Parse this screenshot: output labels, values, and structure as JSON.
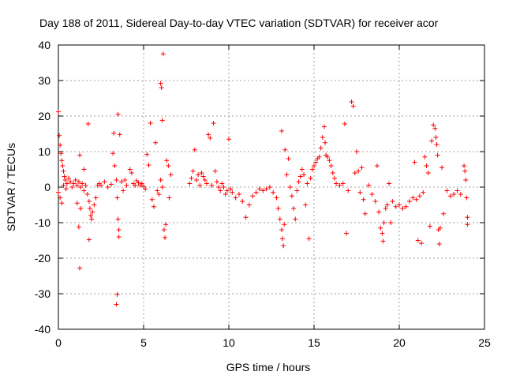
{
  "chart_data": {
    "type": "scatter",
    "title": "Day 188 of 2011, Sidereal Day-to-day VTEC variation (SDTVAR) for receiver acor",
    "xlabel": "GPS time / hours",
    "ylabel": "SDTVAR / TECUs",
    "xlim": [
      0,
      25
    ],
    "ylim": [
      -40,
      40
    ],
    "x_ticks": [
      0,
      5,
      10,
      15,
      20,
      25
    ],
    "y_ticks": [
      -40,
      -30,
      -20,
      -10,
      0,
      10,
      20,
      30,
      40
    ],
    "x_tick_labels": [
      "0",
      "5",
      "10",
      "15",
      "20",
      "25"
    ],
    "y_tick_labels": [
      "-40",
      "-30",
      "-20",
      "-10",
      "0",
      "10",
      "20",
      "30",
      "40"
    ],
    "grid": true,
    "marker": "+",
    "color": "#ff0000",
    "series": [
      {
        "name": "SDTVAR",
        "points": [
          [
            0.0,
            21.2
          ],
          [
            0.05,
            14.5
          ],
          [
            0.1,
            11.8
          ],
          [
            0.15,
            9.5
          ],
          [
            0.2,
            7.5
          ],
          [
            0.25,
            6.0
          ],
          [
            0.3,
            4.5
          ],
          [
            0.35,
            3.0
          ],
          [
            0.4,
            2.0
          ],
          [
            0.0,
            -1.5
          ],
          [
            0.1,
            -3.0
          ],
          [
            0.2,
            -4.5
          ],
          [
            0.3,
            0.5
          ],
          [
            0.45,
            -0.5
          ],
          [
            0.5,
            1.0
          ],
          [
            0.6,
            2.5
          ],
          [
            0.7,
            1.5
          ],
          [
            0.8,
            0.0
          ],
          [
            0.9,
            1.0
          ],
          [
            1.0,
            2.0
          ],
          [
            1.1,
            0.5
          ],
          [
            1.2,
            1.5
          ],
          [
            1.3,
            0.0
          ],
          [
            1.4,
            1.0
          ],
          [
            1.5,
            -1.0
          ],
          [
            1.6,
            0.5
          ],
          [
            1.7,
            -2.0
          ],
          [
            1.8,
            -4.0
          ],
          [
            1.85,
            -6.0
          ],
          [
            1.9,
            -8.0
          ],
          [
            1.95,
            -9.0
          ],
          [
            2.0,
            -7.0
          ],
          [
            2.1,
            -5.0
          ],
          [
            2.2,
            -3.0
          ],
          [
            2.3,
            0.5
          ],
          [
            2.4,
            1.0
          ],
          [
            1.25,
            -22.8
          ],
          [
            1.2,
            -11.2
          ],
          [
            1.25,
            9.0
          ],
          [
            1.75,
            17.8
          ],
          [
            1.8,
            -14.8
          ],
          [
            1.3,
            -6.0
          ],
          [
            1.1,
            -4.5
          ],
          [
            1.5,
            5.0
          ],
          [
            2.5,
            0.5
          ],
          [
            2.7,
            1.5
          ],
          [
            2.9,
            0.0
          ],
          [
            3.1,
            0.8
          ],
          [
            3.2,
            9.5
          ],
          [
            3.25,
            15.2
          ],
          [
            3.3,
            6.0
          ],
          [
            3.4,
            2.0
          ],
          [
            3.45,
            -3.0
          ],
          [
            3.5,
            -9.0
          ],
          [
            3.55,
            -12.0
          ],
          [
            3.5,
            20.5
          ],
          [
            3.45,
            -30.2
          ],
          [
            3.4,
            -33.0
          ],
          [
            3.6,
            14.8
          ],
          [
            3.55,
            -14.0
          ],
          [
            3.7,
            1.5
          ],
          [
            3.8,
            -1.0
          ],
          [
            3.9,
            2.0
          ],
          [
            4.0,
            0.5
          ],
          [
            4.2,
            5.0
          ],
          [
            4.3,
            4.0
          ],
          [
            4.4,
            1.0
          ],
          [
            4.5,
            0.5
          ],
          [
            4.6,
            1.8
          ],
          [
            4.7,
            1.2
          ],
          [
            4.8,
            0.5
          ],
          [
            4.9,
            1.0
          ],
          [
            5.0,
            0.2
          ],
          [
            5.1,
            -0.5
          ],
          [
            5.2,
            9.2
          ],
          [
            5.3,
            6.2
          ],
          [
            5.4,
            18.0
          ],
          [
            5.5,
            -3.5
          ],
          [
            5.6,
            -5.5
          ],
          [
            5.7,
            12.5
          ],
          [
            5.8,
            -1.0
          ],
          [
            5.9,
            -2.0
          ],
          [
            6.0,
            29.2
          ],
          [
            6.05,
            28.0
          ],
          [
            6.1,
            18.8
          ],
          [
            6.15,
            37.5
          ],
          [
            6.2,
            -12.0
          ],
          [
            6.25,
            -14.2
          ],
          [
            6.3,
            -10.5
          ],
          [
            6.35,
            7.5
          ],
          [
            6.45,
            6.0
          ],
          [
            6.5,
            -3.0
          ],
          [
            6.6,
            3.5
          ],
          [
            6.0,
            2.0
          ],
          [
            6.1,
            0.0
          ],
          [
            7.7,
            1.0
          ],
          [
            7.8,
            2.5
          ],
          [
            7.9,
            4.5
          ],
          [
            8.0,
            10.5
          ],
          [
            8.1,
            2.0
          ],
          [
            8.2,
            3.5
          ],
          [
            8.3,
            0.5
          ],
          [
            8.4,
            4.0
          ],
          [
            8.5,
            3.0
          ],
          [
            8.6,
            2.0
          ],
          [
            8.7,
            1.0
          ],
          [
            8.8,
            14.8
          ],
          [
            8.9,
            13.8
          ],
          [
            9.0,
            0.5
          ],
          [
            9.1,
            18.0
          ],
          [
            9.2,
            4.5
          ],
          [
            9.3,
            1.5
          ],
          [
            9.4,
            0.0
          ],
          [
            9.5,
            -1.0
          ],
          [
            9.6,
            1.0
          ],
          [
            9.7,
            0.0
          ],
          [
            9.8,
            -2.0
          ],
          [
            9.9,
            -1.0
          ],
          [
            10.0,
            13.5
          ],
          [
            10.1,
            -0.5
          ],
          [
            10.2,
            -1.5
          ],
          [
            10.4,
            -3.0
          ],
          [
            10.6,
            -2.0
          ],
          [
            10.8,
            -4.0
          ],
          [
            11.0,
            -8.5
          ],
          [
            11.2,
            -5.0
          ],
          [
            11.4,
            -2.5
          ],
          [
            11.6,
            -1.5
          ],
          [
            11.8,
            -0.5
          ],
          [
            12.0,
            -1.0
          ],
          [
            12.2,
            -0.5
          ],
          [
            12.4,
            0.0
          ],
          [
            12.6,
            -1.5
          ],
          [
            12.8,
            -3.0
          ],
          [
            12.9,
            -6.0
          ],
          [
            13.0,
            -9.0
          ],
          [
            13.1,
            -12.0
          ],
          [
            13.15,
            -14.5
          ],
          [
            13.2,
            -16.5
          ],
          [
            13.1,
            15.8
          ],
          [
            13.25,
            -10.5
          ],
          [
            13.3,
            10.5
          ],
          [
            13.4,
            3.5
          ],
          [
            13.5,
            8.0
          ],
          [
            13.6,
            0.0
          ],
          [
            13.7,
            -2.5
          ],
          [
            13.8,
            -6.0
          ],
          [
            13.9,
            -9.0
          ],
          [
            14.0,
            -1.0
          ],
          [
            14.1,
            1.5
          ],
          [
            14.2,
            3.0
          ],
          [
            14.3,
            5.0
          ],
          [
            14.4,
            3.5
          ],
          [
            14.5,
            -5.0
          ],
          [
            14.6,
            1.0
          ],
          [
            14.7,
            -14.5
          ],
          [
            14.8,
            2.5
          ],
          [
            14.9,
            5.0
          ],
          [
            15.0,
            6.0
          ],
          [
            15.1,
            7.0
          ],
          [
            15.2,
            8.0
          ],
          [
            15.3,
            8.5
          ],
          [
            15.4,
            11.0
          ],
          [
            15.5,
            14.0
          ],
          [
            15.6,
            17.0
          ],
          [
            15.65,
            12.5
          ],
          [
            15.7,
            9.0
          ],
          [
            15.8,
            8.5
          ],
          [
            15.9,
            7.5
          ],
          [
            16.0,
            6.0
          ],
          [
            16.1,
            4.0
          ],
          [
            16.2,
            2.5
          ],
          [
            16.3,
            1.0
          ],
          [
            16.5,
            0.5
          ],
          [
            16.7,
            1.0
          ],
          [
            16.8,
            17.8
          ],
          [
            16.9,
            -13.0
          ],
          [
            17.0,
            -1.0
          ],
          [
            17.2,
            24.0
          ],
          [
            17.3,
            22.8
          ],
          [
            17.4,
            4.0
          ],
          [
            17.5,
            10.0
          ],
          [
            17.6,
            4.5
          ],
          [
            17.7,
            -1.5
          ],
          [
            17.8,
            5.5
          ],
          [
            17.9,
            -3.5
          ],
          [
            18.0,
            -7.5
          ],
          [
            18.2,
            0.5
          ],
          [
            18.4,
            -2.0
          ],
          [
            18.6,
            -4.0
          ],
          [
            18.7,
            6.0
          ],
          [
            18.8,
            -7.0
          ],
          [
            18.9,
            -11.5
          ],
          [
            19.0,
            -13.0
          ],
          [
            19.05,
            -15.2
          ],
          [
            19.1,
            -10.0
          ],
          [
            19.2,
            -6.0
          ],
          [
            19.3,
            -5.0
          ],
          [
            19.4,
            1.0
          ],
          [
            19.6,
            -4.0
          ],
          [
            19.8,
            -5.5
          ],
          [
            20.0,
            -5.0
          ],
          [
            20.2,
            -6.0
          ],
          [
            20.4,
            -5.5
          ],
          [
            20.6,
            -4.0
          ],
          [
            20.8,
            -3.0
          ],
          [
            20.9,
            7.0
          ],
          [
            21.0,
            -3.5
          ],
          [
            21.2,
            -2.5
          ],
          [
            21.4,
            -1.5
          ],
          [
            21.5,
            8.5
          ],
          [
            21.6,
            6.0
          ],
          [
            21.7,
            4.0
          ],
          [
            21.8,
            -11.0
          ],
          [
            21.9,
            13.0
          ],
          [
            22.0,
            17.5
          ],
          [
            22.1,
            16.5
          ],
          [
            22.15,
            14.0
          ],
          [
            22.2,
            12.0
          ],
          [
            22.25,
            9.0
          ],
          [
            22.3,
            -12.0
          ],
          [
            22.35,
            -16.0
          ],
          [
            22.4,
            -11.5
          ],
          [
            22.5,
            5.5
          ],
          [
            22.6,
            -7.5
          ],
          [
            22.8,
            -1.0
          ],
          [
            23.0,
            -2.5
          ],
          [
            23.2,
            -2.0
          ],
          [
            23.4,
            -1.0
          ],
          [
            23.6,
            -2.0
          ],
          [
            23.8,
            6.0
          ],
          [
            23.85,
            4.5
          ],
          [
            23.9,
            2.0
          ],
          [
            23.95,
            -3.0
          ],
          [
            24.0,
            -10.5
          ],
          [
            24.0,
            -8.5
          ],
          [
            21.1,
            -15.0
          ],
          [
            21.3,
            -15.8
          ],
          [
            19.5,
            -10.0
          ]
        ]
      }
    ]
  }
}
